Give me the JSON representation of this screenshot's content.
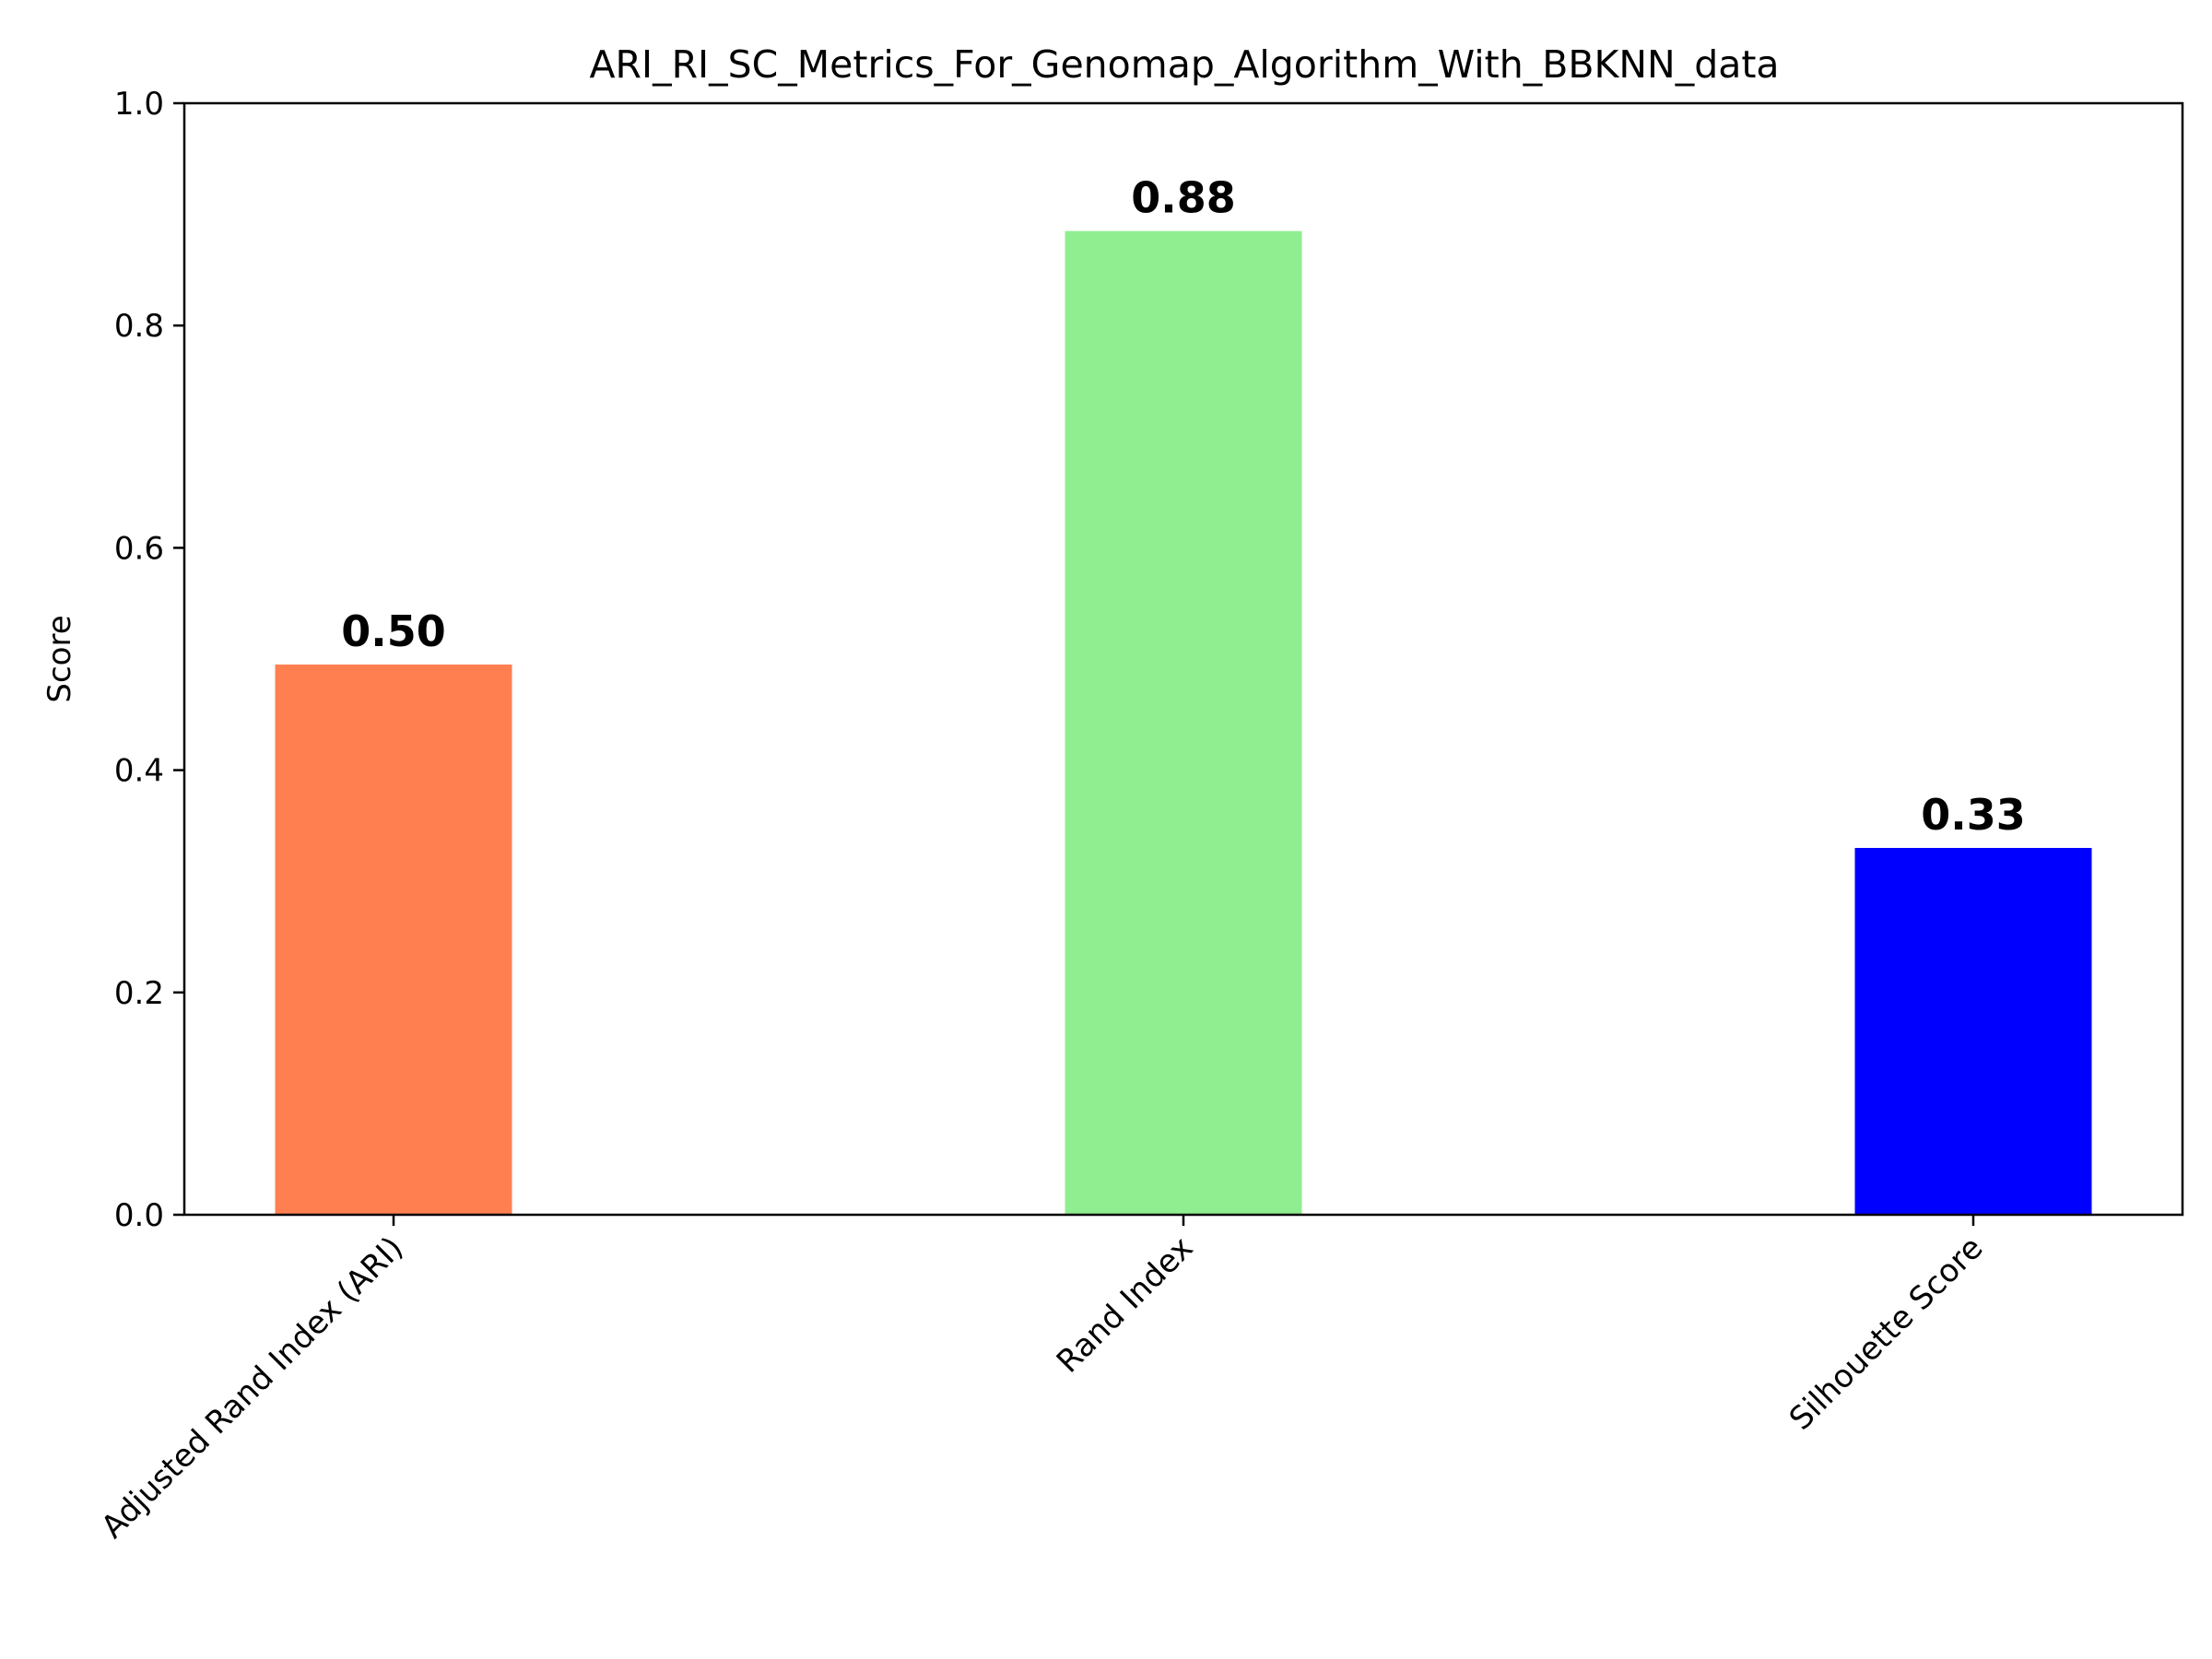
{
  "chart_data": {
    "type": "bar",
    "title": "ARI_RI_SC_Metrics_For_Genomap_Algorithm_With_BBKNN_data",
    "xlabel": "",
    "ylabel": "Score",
    "ylim": [
      0,
      1.0
    ],
    "yticks": [
      0.0,
      0.2,
      0.4,
      0.6,
      0.8,
      1.0
    ],
    "ytick_labels": [
      "0.0",
      "0.2",
      "0.4",
      "0.6",
      "0.8",
      "1.0"
    ],
    "categories": [
      "Adjusted Rand Index (ARI)",
      "Rand Index",
      "Silhouette Score"
    ],
    "values": [
      0.495,
      0.885,
      0.33
    ],
    "value_labels": [
      "0.50",
      "0.88",
      "0.33"
    ],
    "colors": [
      "#ff7f50",
      "#90ee90",
      "#0000ff"
    ],
    "grid": false,
    "legend": "none",
    "tick_label_rotation_deg": 45
  }
}
